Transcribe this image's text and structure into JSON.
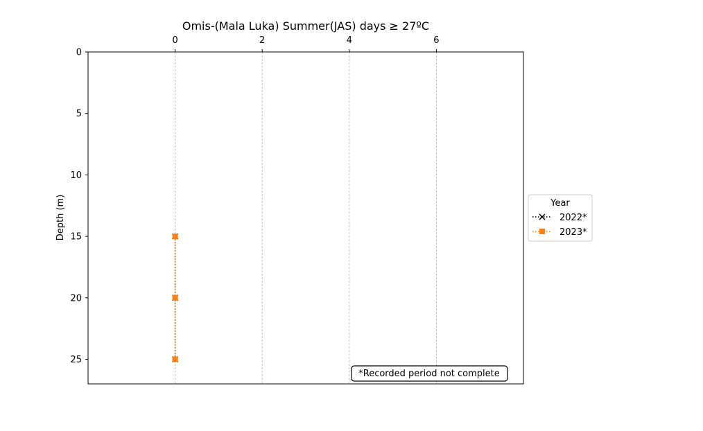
{
  "chart_data": {
    "type": "line",
    "title": "Omis-(Mala Luka) Summer(JAS) days ≥ 27ºC",
    "xlabel": "",
    "ylabel": "Depth (m)",
    "xlim": [
      -2,
      8
    ],
    "ylim": [
      27,
      0
    ],
    "x_ticks": [
      0,
      2,
      4,
      6
    ],
    "x_tick_labels": [
      "0",
      "2",
      "4",
      "6"
    ],
    "y_ticks": [
      0,
      5,
      10,
      15,
      20,
      25
    ],
    "y_tick_labels": [
      "0",
      "5",
      "10",
      "15",
      "20",
      "25"
    ],
    "x_axis_position": "top",
    "y_inverted": true,
    "grid": "vertical dashed",
    "legend": {
      "title": "Year",
      "placement": "outside-right"
    },
    "series": [
      {
        "name": "2022*",
        "color": "#000000",
        "marker": "x",
        "linestyle": "dotted",
        "points": [
          {
            "x": 0,
            "depth": 15
          },
          {
            "x": 0,
            "depth": 20
          },
          {
            "x": 0,
            "depth": 25
          }
        ]
      },
      {
        "name": "2023*",
        "color": "#ff7f0e",
        "marker": "square",
        "linestyle": "dotted",
        "points": [
          {
            "x": 0,
            "depth": 15
          },
          {
            "x": 0,
            "depth": 20
          },
          {
            "x": 0,
            "depth": 25
          }
        ]
      }
    ],
    "annotation": "*Recorded period not complete"
  }
}
